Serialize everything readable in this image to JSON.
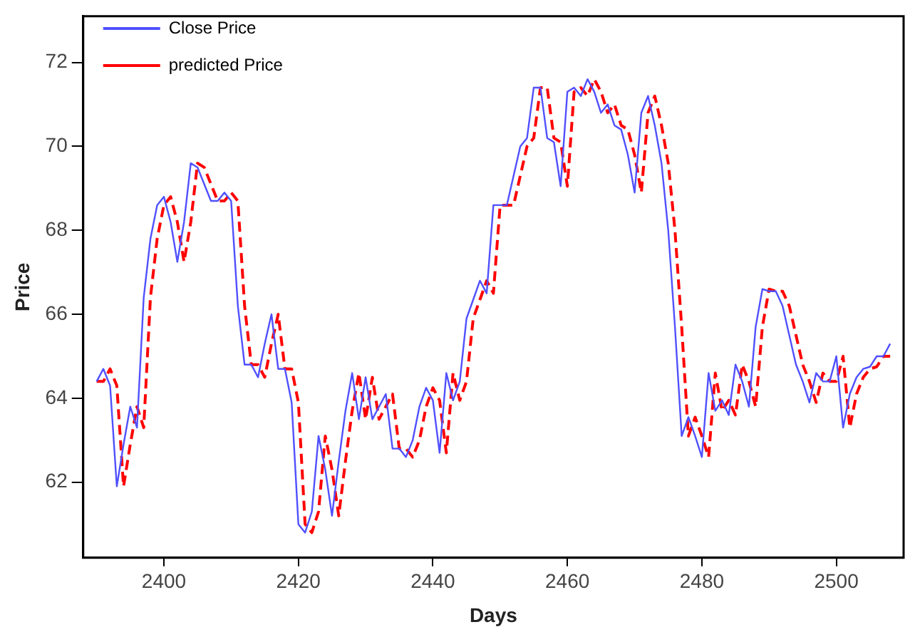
{
  "chart_data": {
    "type": "line",
    "xlabel": "Days",
    "ylabel": "Price",
    "xlim": [
      2388,
      2510
    ],
    "ylim": [
      60.2,
      73.1
    ],
    "xticks": [
      2400,
      2420,
      2440,
      2460,
      2480,
      2500
    ],
    "yticks": [
      62,
      64,
      66,
      68,
      70,
      72
    ],
    "grid": false,
    "legend": "top left",
    "marker": "none",
    "x": [
      2390,
      2391,
      2392,
      2393,
      2394,
      2395,
      2396,
      2397,
      2398,
      2399,
      2400,
      2401,
      2402,
      2403,
      2404,
      2405,
      2406,
      2407,
      2408,
      2409,
      2410,
      2411,
      2412,
      2413,
      2414,
      2415,
      2416,
      2417,
      2418,
      2419,
      2420,
      2421,
      2422,
      2423,
      2424,
      2425,
      2426,
      2427,
      2428,
      2429,
      2430,
      2431,
      2432,
      2433,
      2434,
      2435,
      2436,
      2437,
      2438,
      2439,
      2440,
      2441,
      2442,
      2443,
      2444,
      2445,
      2446,
      2447,
      2448,
      2449,
      2450,
      2451,
      2452,
      2453,
      2454,
      2455,
      2456,
      2457,
      2458,
      2459,
      2460,
      2461,
      2462,
      2463,
      2464,
      2465,
      2466,
      2467,
      2468,
      2469,
      2470,
      2471,
      2472,
      2473,
      2474,
      2475,
      2476,
      2477,
      2478,
      2479,
      2480,
      2481,
      2482,
      2483,
      2484,
      2485,
      2486,
      2487,
      2488,
      2489,
      2490,
      2491,
      2492,
      2493,
      2494,
      2495,
      2496,
      2497,
      2498,
      2499,
      2500,
      2501,
      2502,
      2503,
      2504,
      2505,
      2506,
      2507,
      2508
    ],
    "series": [
      {
        "name": "Close Price",
        "color": "#5050ff",
        "line_style": "solid",
        "values": [
          64.4,
          64.7,
          64.3,
          61.9,
          62.9,
          63.8,
          63.3,
          66.4,
          67.8,
          68.6,
          68.8,
          68.2,
          67.25,
          68.2,
          69.6,
          69.5,
          69.1,
          68.7,
          68.7,
          68.9,
          68.7,
          66.2,
          64.8,
          64.8,
          64.5,
          65.3,
          66.0,
          64.7,
          64.7,
          63.9,
          61.0,
          60.8,
          61.3,
          63.1,
          62.3,
          61.2,
          62.5,
          63.7,
          64.6,
          63.5,
          64.5,
          63.5,
          63.8,
          64.1,
          62.8,
          62.8,
          62.6,
          63.0,
          63.8,
          64.25,
          63.95,
          62.7,
          64.6,
          63.95,
          64.4,
          65.9,
          66.35,
          66.8,
          66.5,
          68.6,
          68.6,
          68.6,
          69.3,
          70.0,
          70.2,
          71.4,
          71.4,
          70.2,
          70.1,
          69.05,
          71.3,
          71.4,
          71.2,
          71.6,
          71.3,
          70.8,
          71.0,
          70.5,
          70.4,
          69.8,
          68.9,
          70.8,
          71.2,
          70.5,
          69.6,
          68.0,
          65.7,
          63.1,
          63.55,
          63.1,
          62.6,
          64.6,
          63.7,
          63.95,
          63.6,
          64.8,
          64.4,
          63.8,
          65.7,
          66.6,
          66.55,
          66.55,
          66.2,
          65.5,
          64.8,
          64.4,
          63.9,
          64.6,
          64.4,
          64.4,
          65.0,
          63.3,
          64.1,
          64.5,
          64.7,
          64.75,
          65.0,
          65.0,
          65.3
        ]
      },
      {
        "name": "predicted Price",
        "color": "#ff0000",
        "line_style": "dashed",
        "values": [
          64.4,
          64.4,
          64.7,
          64.3,
          61.9,
          62.9,
          63.8,
          63.3,
          66.4,
          67.8,
          68.6,
          68.8,
          68.2,
          67.25,
          68.2,
          69.6,
          69.5,
          69.1,
          68.7,
          68.7,
          68.9,
          68.7,
          66.2,
          64.8,
          64.8,
          64.5,
          65.3,
          66.0,
          64.7,
          64.7,
          63.9,
          61.0,
          60.8,
          61.3,
          63.1,
          62.3,
          61.2,
          62.5,
          63.7,
          64.6,
          63.5,
          64.5,
          63.5,
          63.8,
          64.1,
          62.8,
          62.8,
          62.6,
          63.0,
          63.8,
          64.25,
          63.95,
          62.7,
          64.6,
          63.95,
          64.4,
          65.9,
          66.35,
          66.8,
          66.5,
          68.6,
          68.6,
          68.6,
          69.3,
          70.0,
          70.2,
          71.4,
          71.4,
          70.2,
          70.1,
          69.05,
          71.3,
          71.4,
          71.2,
          71.6,
          71.3,
          70.8,
          71.0,
          70.5,
          70.4,
          69.8,
          68.9,
          70.8,
          71.2,
          70.5,
          69.6,
          68.0,
          65.7,
          63.1,
          63.55,
          63.1,
          62.6,
          64.6,
          63.7,
          63.95,
          63.6,
          64.8,
          64.4,
          63.8,
          65.7,
          66.6,
          66.55,
          66.55,
          66.2,
          65.5,
          64.8,
          64.4,
          63.9,
          64.6,
          64.4,
          64.4,
          65.0,
          63.3,
          64.1,
          64.5,
          64.7,
          64.75,
          65.0,
          65.0
        ]
      }
    ]
  }
}
